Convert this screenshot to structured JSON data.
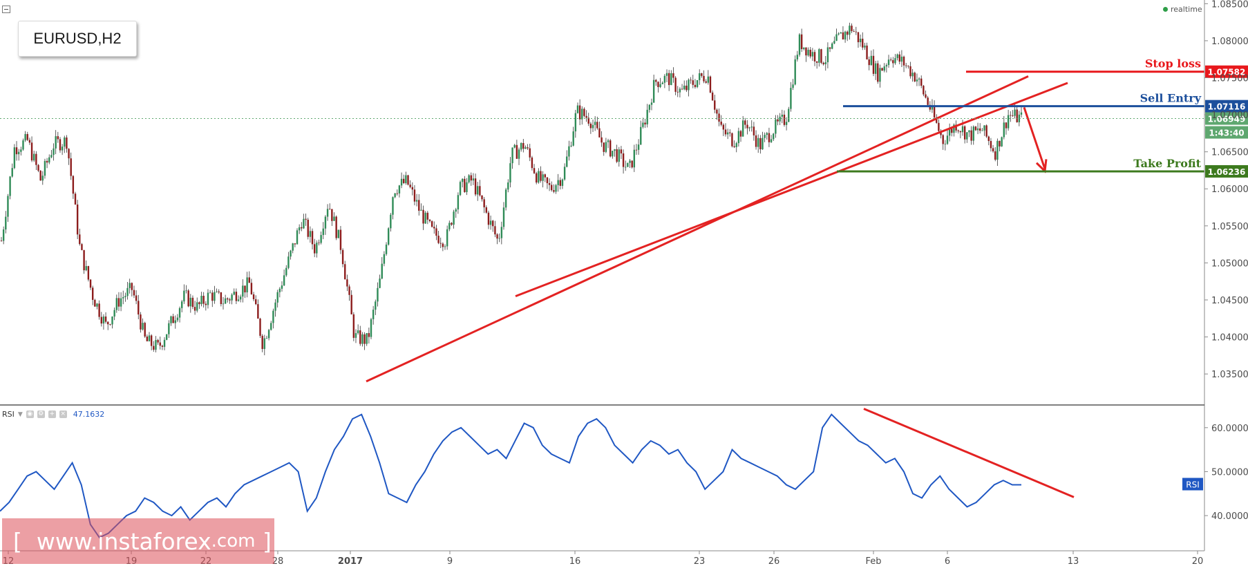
{
  "symbol": "EURUSD,H2",
  "status": "realtime",
  "rsi_header": {
    "label": "RSI",
    "value": "47.1632"
  },
  "watermark": {
    "open": "[",
    "site": "www.instaforex",
    "tld": ".com",
    "close": "]"
  },
  "colors": {
    "up": "#2f8b57",
    "down": "#8c1c1c",
    "rsi": "#1f57c3",
    "trend": "#e32222",
    "stop": "#e8181c",
    "entry": "#1c4f9c",
    "profit": "#3d7a1e",
    "last": "#5ea76f"
  },
  "chart_data": [
    {
      "type": "candlestick",
      "title": "EURUSD,H2",
      "ylim": [
        1.031,
        1.0855
      ],
      "y_ticks": [
        "1.03500",
        "1.04000",
        "1.04500",
        "1.05000",
        "1.05500",
        "1.06000",
        "1.06500",
        "1.07000",
        "1.07500",
        "1.08000",
        "1.08500"
      ],
      "x_ticks": [
        "12",
        "19",
        "22",
        "28",
        "2017",
        "9",
        "16",
        "23",
        "26",
        "Feb",
        "6",
        "13",
        "20"
      ],
      "grid": false,
      "price_path": [
        [
          "12",
          1.053
        ],
        [
          "14",
          1.0655
        ],
        [
          "15",
          1.0665
        ],
        [
          "16",
          1.0612
        ],
        [
          "16",
          1.066
        ],
        [
          "17",
          1.0665
        ],
        [
          "17",
          1.052
        ],
        [
          "18",
          1.0455
        ],
        [
          "19",
          1.0415
        ],
        [
          "19",
          1.045
        ],
        [
          "20",
          1.0465
        ],
        [
          "21",
          1.0395
        ],
        [
          "21",
          1.0385
        ],
        [
          "22",
          1.042
        ],
        [
          "22",
          1.0455
        ],
        [
          "23",
          1.044
        ],
        [
          "25",
          1.0458
        ],
        [
          "26",
          1.0448
        ],
        [
          "27",
          1.046
        ],
        [
          "28",
          1.0472
        ],
        [
          "28",
          1.039
        ],
        [
          "29",
          1.045
        ],
        [
          "30",
          1.0505
        ],
        [
          "30",
          1.056
        ],
        [
          "31",
          1.0518
        ],
        [
          "31",
          1.0582
        ],
        [
          "2017",
          1.052
        ],
        [
          "2017",
          1.04
        ],
        [
          "3",
          1.0395
        ],
        [
          "3",
          1.048
        ],
        [
          "4",
          1.06
        ],
        [
          "5",
          1.061
        ],
        [
          "6",
          1.057
        ],
        [
          "6",
          1.054
        ],
        [
          "9",
          1.053
        ],
        [
          "9",
          1.06
        ],
        [
          "10",
          1.0612
        ],
        [
          "11",
          1.057
        ],
        [
          "12",
          1.0528
        ],
        [
          "13",
          1.0645
        ],
        [
          "13",
          1.066
        ],
        [
          "15",
          1.0615
        ],
        [
          "16",
          1.06
        ],
        [
          "16",
          1.062
        ],
        [
          "17",
          1.0705
        ],
        [
          "18",
          1.0695
        ],
        [
          "19",
          1.066
        ],
        [
          "20",
          1.0648
        ],
        [
          "20",
          1.0625
        ],
        [
          "22",
          1.068
        ],
        [
          "23",
          1.0745
        ],
        [
          "24",
          1.075
        ],
        [
          "24",
          1.073
        ],
        [
          "25",
          1.0745
        ],
        [
          "25",
          1.0755
        ],
        [
          "26",
          1.068
        ],
        [
          "26",
          1.0665
        ],
        [
          "27",
          1.069
        ],
        [
          "29",
          1.0658
        ],
        [
          "30",
          1.068
        ],
        [
          "31",
          1.0695
        ],
        [
          "31",
          1.08
        ],
        [
          "Feb",
          1.0782
        ],
        [
          "2",
          1.0775
        ],
        [
          "2",
          1.0802
        ],
        [
          "3",
          1.0818
        ],
        [
          "3",
          1.079
        ],
        [
          "5",
          1.0755
        ],
        [
          "6",
          1.078
        ],
        [
          "6",
          1.077
        ],
        [
          "7",
          1.075
        ],
        [
          "7",
          1.071
        ],
        [
          "8",
          1.0665
        ],
        [
          "8",
          1.0688
        ],
        [
          "9",
          1.0672
        ],
        [
          "9",
          1.068
        ],
        [
          "10",
          1.065
        ],
        [
          "10",
          1.07
        ],
        [
          "10",
          1.0695
        ]
      ],
      "last_price": "1.06949",
      "countdown": "1:43:40",
      "annotations": [
        {
          "label": "Stop loss",
          "price": "1.07582"
        },
        {
          "label": "Sell Entry",
          "price": "1.07116"
        },
        {
          "label": "Take Profit",
          "price": "1.06236"
        }
      ]
    },
    {
      "type": "line",
      "title": "RSI",
      "ylim": [
        32,
        65
      ],
      "y_ticks": [
        "40.0000",
        "50.0000",
        "60.0000"
      ],
      "badge": "RSI",
      "value": 47.1632,
      "values": [
        41,
        43,
        46,
        49,
        50,
        48,
        46,
        49,
        52,
        47,
        38,
        35,
        36,
        38,
        40,
        41,
        44,
        43,
        41,
        40,
        42,
        39,
        41,
        43,
        44,
        42,
        45,
        47,
        48,
        49,
        50,
        51,
        52,
        50,
        41,
        44,
        50,
        55,
        58,
        62,
        63,
        58,
        52,
        45,
        44,
        43,
        47,
        50,
        54,
        57,
        59,
        60,
        58,
        56,
        54,
        55,
        53,
        57,
        61,
        60,
        56,
        54,
        53,
        52,
        58,
        61,
        62,
        60,
        56,
        54,
        52,
        55,
        57,
        56,
        54,
        55,
        52,
        50,
        46,
        48,
        50,
        55,
        53,
        52,
        51,
        50,
        49,
        47,
        46,
        48,
        50,
        60,
        63,
        61,
        59,
        57,
        56,
        54,
        52,
        53,
        50,
        45,
        44,
        47,
        49,
        46,
        44,
        42,
        43,
        45,
        47,
        48,
        47,
        47
      ]
    }
  ]
}
